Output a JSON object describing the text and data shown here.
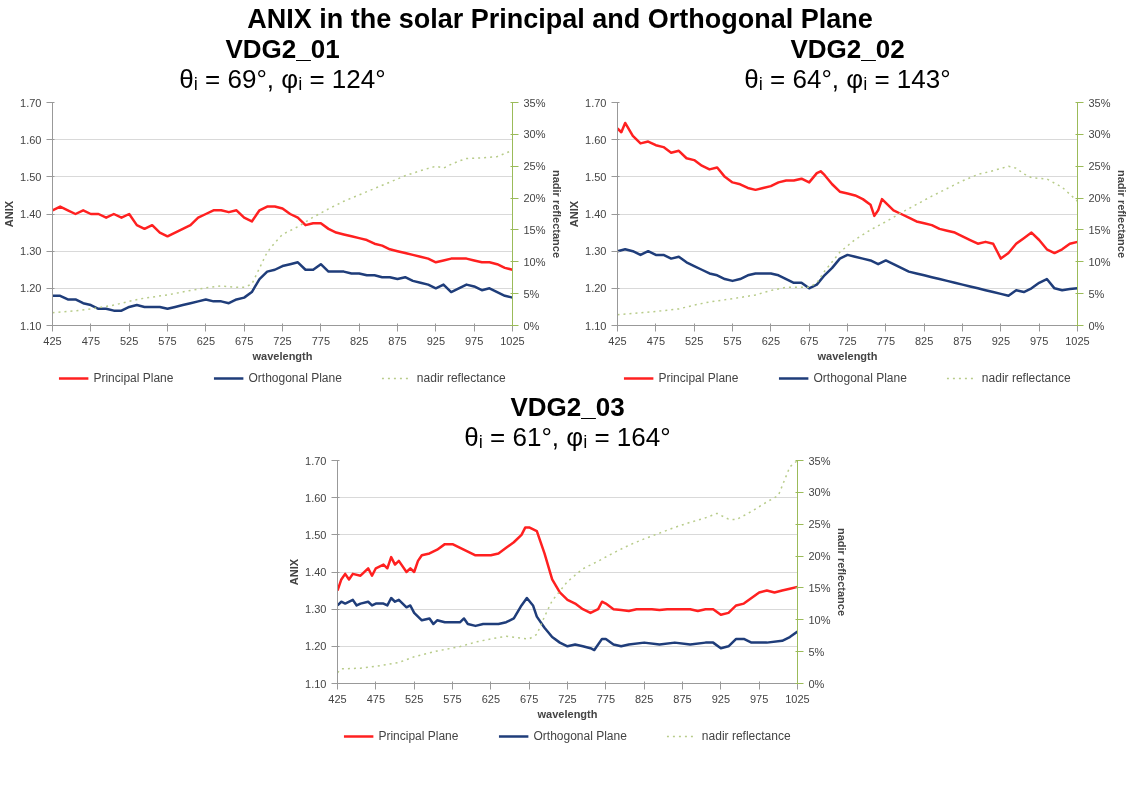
{
  "chart_data": [
    {
      "type": "line",
      "title": "VDG2_01",
      "subtitle": "θᵢ = 69°, φᵢ = 124°",
      "annotations": [
        "ANIX in the solar Principal and Orthogonal Plane"
      ],
      "xlabel": "wavelength",
      "ylabel": "ANIX",
      "y2label": "nadir reflectance",
      "xlim": [
        425,
        1025
      ],
      "xticks": [
        425,
        475,
        525,
        575,
        625,
        675,
        725,
        775,
        825,
        875,
        925,
        975,
        1025
      ],
      "ylim": [
        1.1,
        1.7
      ],
      "yticks": [
        {
          "value": 1.1,
          "label": "1.10"
        },
        {
          "value": 1.2,
          "label": "1.20"
        },
        {
          "value": 1.3,
          "label": "1.30"
        },
        {
          "value": 1.4,
          "label": "1.40"
        },
        {
          "value": 1.5,
          "label": "1.50"
        },
        {
          "value": 1.6,
          "label": "1.60"
        },
        {
          "value": 1.7,
          "label": "1.70"
        }
      ],
      "y2lim": [
        0,
        35
      ],
      "y2ticks": [
        {
          "value": 0,
          "label": "0%"
        },
        {
          "value": 5,
          "label": "5%"
        },
        {
          "value": 10,
          "label": "10%"
        },
        {
          "value": 15,
          "label": "15%"
        },
        {
          "value": 20,
          "label": "20%"
        },
        {
          "value": 25,
          "label": "25%"
        },
        {
          "value": 30,
          "label": "30%"
        },
        {
          "value": 35,
          "label": "35%"
        }
      ],
      "grid": "y",
      "legend": "bottom",
      "series": [
        {
          "name": "Principal Plane",
          "color": "#ff2020",
          "line_style": "solid",
          "x": [
            425,
            435,
            445,
            455,
            465,
            475,
            485,
            495,
            505,
            515,
            525,
            535,
            545,
            555,
            565,
            575,
            585,
            595,
            605,
            615,
            625,
            635,
            645,
            655,
            665,
            675,
            685,
            695,
            705,
            715,
            725,
            735,
            745,
            755,
            765,
            775,
            785,
            795,
            805,
            815,
            825,
            835,
            845,
            855,
            865,
            875,
            885,
            895,
            905,
            915,
            925,
            935,
            945,
            955,
            965,
            975,
            985,
            995,
            1005,
            1015,
            1025
          ],
          "values": [
            1.41,
            1.42,
            1.41,
            1.4,
            1.41,
            1.4,
            1.4,
            1.39,
            1.4,
            1.39,
            1.4,
            1.37,
            1.36,
            1.37,
            1.35,
            1.34,
            1.35,
            1.36,
            1.37,
            1.39,
            1.4,
            1.41,
            1.41,
            1.405,
            1.41,
            1.39,
            1.38,
            1.41,
            1.42,
            1.42,
            1.415,
            1.4,
            1.39,
            1.37,
            1.375,
            1.375,
            1.36,
            1.35,
            1.345,
            1.34,
            1.335,
            1.33,
            1.32,
            1.315,
            1.305,
            1.3,
            1.295,
            1.29,
            1.285,
            1.28,
            1.27,
            1.275,
            1.28,
            1.28,
            1.28,
            1.275,
            1.27,
            1.27,
            1.265,
            1.255,
            1.25
          ]
        },
        {
          "name": "Orthogonal Plane",
          "color": "#1f3d7a",
          "line_style": "solid",
          "x": [
            425,
            435,
            445,
            455,
            465,
            475,
            485,
            495,
            505,
            515,
            525,
            535,
            545,
            555,
            565,
            575,
            585,
            595,
            605,
            615,
            625,
            635,
            645,
            655,
            665,
            675,
            685,
            695,
            705,
            715,
            725,
            735,
            745,
            755,
            765,
            775,
            785,
            795,
            805,
            815,
            825,
            835,
            845,
            855,
            865,
            875,
            885,
            895,
            905,
            915,
            925,
            935,
            945,
            955,
            965,
            975,
            985,
            995,
            1005,
            1015,
            1025
          ],
          "values": [
            1.18,
            1.18,
            1.17,
            1.17,
            1.16,
            1.155,
            1.145,
            1.145,
            1.14,
            1.14,
            1.15,
            1.155,
            1.15,
            1.15,
            1.15,
            1.145,
            1.15,
            1.155,
            1.16,
            1.165,
            1.17,
            1.165,
            1.165,
            1.16,
            1.17,
            1.175,
            1.19,
            1.225,
            1.245,
            1.25,
            1.26,
            1.265,
            1.27,
            1.25,
            1.25,
            1.265,
            1.245,
            1.245,
            1.245,
            1.24,
            1.24,
            1.235,
            1.235,
            1.23,
            1.23,
            1.225,
            1.23,
            1.22,
            1.215,
            1.21,
            1.2,
            1.21,
            1.19,
            1.2,
            1.21,
            1.205,
            1.195,
            1.2,
            1.19,
            1.18,
            1.175
          ]
        },
        {
          "name": "nadir reflectance",
          "color": "#b8cc8a",
          "line_style": "dotted",
          "axis": "y2",
          "x": [
            425,
            455,
            475,
            505,
            525,
            545,
            575,
            605,
            625,
            645,
            665,
            675,
            685,
            695,
            705,
            715,
            725,
            745,
            765,
            785,
            805,
            825,
            845,
            865,
            885,
            905,
            925,
            935,
            945,
            955,
            965,
            985,
            1005,
            1025
          ],
          "values": [
            2.0,
            2.3,
            2.6,
            3.2,
            3.8,
            4.3,
            4.8,
            5.5,
            5.9,
            6.2,
            6.0,
            6.0,
            6.5,
            9,
            11.5,
            13,
            14.3,
            15.5,
            17,
            18.3,
            19.5,
            20.5,
            21.5,
            22.5,
            23.5,
            24.3,
            25,
            24.7,
            25.3,
            25.8,
            26.2,
            26.3,
            26.5,
            27.5
          ]
        }
      ]
    },
    {
      "type": "line",
      "title": "VDG2_02",
      "subtitle": "θᵢ = 64°, φᵢ = 143°",
      "xlabel": "wavelength",
      "ylabel": "ANIX",
      "y2label": "nadir reflectance",
      "xlim": [
        425,
        1025
      ],
      "xticks": [
        425,
        475,
        525,
        575,
        625,
        675,
        725,
        775,
        825,
        875,
        925,
        975,
        1025
      ],
      "ylim": [
        1.1,
        1.7
      ],
      "yticks": [
        {
          "value": 1.1,
          "label": "1.10"
        },
        {
          "value": 1.2,
          "label": "1.20"
        },
        {
          "value": 1.3,
          "label": "1.30"
        },
        {
          "value": 1.4,
          "label": "1.40"
        },
        {
          "value": 1.5,
          "label": "1.50"
        },
        {
          "value": 1.6,
          "label": "1.60"
        },
        {
          "value": 1.7,
          "label": "1.70"
        }
      ],
      "y2lim": [
        0,
        35
      ],
      "y2ticks": [
        {
          "value": 0,
          "label": "0%"
        },
        {
          "value": 5,
          "label": "5%"
        },
        {
          "value": 10,
          "label": "10%"
        },
        {
          "value": 15,
          "label": "15%"
        },
        {
          "value": 20,
          "label": "20%"
        },
        {
          "value": 25,
          "label": "25%"
        },
        {
          "value": 30,
          "label": "30%"
        },
        {
          "value": 35,
          "label": "35%"
        }
      ],
      "grid": "y",
      "legend": "bottom",
      "series": [
        {
          "name": "Principal Plane",
          "color": "#ff2020",
          "line_style": "solid",
          "x": [
            425,
            430,
            435,
            445,
            455,
            465,
            475,
            485,
            495,
            505,
            515,
            525,
            535,
            545,
            555,
            565,
            575,
            585,
            595,
            605,
            615,
            625,
            635,
            645,
            655,
            665,
            675,
            685,
            690,
            695,
            705,
            715,
            725,
            735,
            745,
            755,
            760,
            765,
            770,
            775,
            785,
            795,
            805,
            815,
            825,
            835,
            845,
            855,
            865,
            875,
            885,
            895,
            905,
            915,
            925,
            935,
            945,
            955,
            965,
            975,
            985,
            995,
            1005,
            1015,
            1025
          ],
          "values": [
            1.63,
            1.62,
            1.645,
            1.61,
            1.59,
            1.595,
            1.585,
            1.58,
            1.565,
            1.57,
            1.55,
            1.545,
            1.53,
            1.52,
            1.525,
            1.5,
            1.485,
            1.48,
            1.47,
            1.465,
            1.47,
            1.475,
            1.485,
            1.49,
            1.49,
            1.495,
            1.485,
            1.51,
            1.515,
            1.505,
            1.48,
            1.46,
            1.455,
            1.45,
            1.44,
            1.425,
            1.395,
            1.41,
            1.44,
            1.43,
            1.41,
            1.4,
            1.39,
            1.38,
            1.375,
            1.37,
            1.36,
            1.355,
            1.35,
            1.34,
            1.33,
            1.32,
            1.325,
            1.32,
            1.28,
            1.295,
            1.32,
            1.335,
            1.35,
            1.33,
            1.305,
            1.295,
            1.305,
            1.32,
            1.325
          ]
        },
        {
          "name": "Orthogonal Plane",
          "color": "#1f3d7a",
          "line_style": "solid",
          "x": [
            425,
            435,
            445,
            455,
            465,
            475,
            485,
            495,
            505,
            515,
            525,
            535,
            545,
            555,
            565,
            575,
            585,
            595,
            605,
            615,
            625,
            635,
            645,
            655,
            665,
            675,
            685,
            695,
            705,
            715,
            725,
            735,
            745,
            755,
            765,
            775,
            785,
            795,
            805,
            815,
            825,
            835,
            845,
            855,
            865,
            875,
            885,
            895,
            905,
            915,
            925,
            935,
            945,
            955,
            965,
            975,
            985,
            995,
            1005,
            1015,
            1025
          ],
          "values": [
            1.3,
            1.305,
            1.3,
            1.29,
            1.3,
            1.29,
            1.29,
            1.28,
            1.285,
            1.27,
            1.26,
            1.25,
            1.24,
            1.235,
            1.225,
            1.22,
            1.225,
            1.235,
            1.24,
            1.24,
            1.24,
            1.235,
            1.225,
            1.215,
            1.215,
            1.2,
            1.21,
            1.235,
            1.255,
            1.28,
            1.29,
            1.285,
            1.28,
            1.275,
            1.265,
            1.275,
            1.265,
            1.255,
            1.245,
            1.24,
            1.235,
            1.23,
            1.225,
            1.22,
            1.215,
            1.21,
            1.205,
            1.2,
            1.195,
            1.19,
            1.185,
            1.18,
            1.195,
            1.19,
            1.2,
            1.215,
            1.225,
            1.2,
            1.195,
            1.198,
            1.2
          ]
        },
        {
          "name": "nadir reflectance",
          "color": "#b8cc8a",
          "line_style": "dotted",
          "axis": "y2",
          "x": [
            425,
            455,
            475,
            505,
            525,
            545,
            575,
            605,
            625,
            645,
            665,
            675,
            685,
            695,
            715,
            735,
            755,
            775,
            795,
            815,
            835,
            855,
            875,
            895,
            915,
            935,
            945,
            955,
            965,
            985,
            1005,
            1025
          ],
          "values": [
            1.7,
            2.0,
            2.2,
            2.6,
            3.2,
            3.7,
            4.2,
            4.8,
            5.5,
            6.0,
            6.0,
            6.0,
            6.7,
            8.5,
            11.5,
            13.5,
            15,
            16.3,
            17.7,
            19,
            20.3,
            21.5,
            22.7,
            23.7,
            24.3,
            25,
            24.7,
            23.8,
            23.2,
            23,
            21.7,
            19.5
          ]
        }
      ]
    },
    {
      "type": "line",
      "title": "VDG2_03",
      "subtitle": "θᵢ = 61°, φᵢ = 164°",
      "xlabel": "wavelength",
      "ylabel": "ANIX",
      "y2label": "nadir reflectance",
      "xlim": [
        425,
        1025
      ],
      "xticks": [
        425,
        475,
        525,
        575,
        625,
        675,
        725,
        775,
        825,
        875,
        925,
        975,
        1025
      ],
      "ylim": [
        1.1,
        1.7
      ],
      "yticks": [
        {
          "value": 1.1,
          "label": "1.10"
        },
        {
          "value": 1.2,
          "label": "1.20"
        },
        {
          "value": 1.3,
          "label": "1.30"
        },
        {
          "value": 1.4,
          "label": "1.40"
        },
        {
          "value": 1.5,
          "label": "1.50"
        },
        {
          "value": 1.6,
          "label": "1.60"
        },
        {
          "value": 1.7,
          "label": "1.70"
        }
      ],
      "y2lim": [
        0,
        35
      ],
      "y2ticks": [
        {
          "value": 0,
          "label": "0%"
        },
        {
          "value": 5,
          "label": "5%"
        },
        {
          "value": 10,
          "label": "10%"
        },
        {
          "value": 15,
          "label": "15%"
        },
        {
          "value": 20,
          "label": "20%"
        },
        {
          "value": 25,
          "label": "25%"
        },
        {
          "value": 30,
          "label": "30%"
        },
        {
          "value": 35,
          "label": "35%"
        }
      ],
      "grid": "y",
      "legend": "bottom",
      "series": [
        {
          "name": "Principal Plane",
          "color": "#ff2020",
          "line_style": "solid",
          "x": [
            425,
            430,
            435,
            440,
            445,
            455,
            465,
            470,
            475,
            485,
            490,
            495,
            500,
            505,
            515,
            520,
            525,
            530,
            535,
            545,
            555,
            565,
            575,
            585,
            595,
            605,
            615,
            625,
            635,
            645,
            655,
            665,
            670,
            675,
            685,
            695,
            705,
            715,
            725,
            735,
            745,
            755,
            765,
            770,
            775,
            785,
            795,
            805,
            815,
            825,
            835,
            845,
            855,
            865,
            875,
            885,
            895,
            905,
            915,
            925,
            935,
            945,
            955,
            965,
            975,
            985,
            995,
            1005,
            1015,
            1025
          ],
          "values": [
            1.35,
            1.38,
            1.395,
            1.38,
            1.395,
            1.39,
            1.41,
            1.39,
            1.41,
            1.42,
            1.41,
            1.44,
            1.42,
            1.43,
            1.4,
            1.41,
            1.4,
            1.43,
            1.445,
            1.45,
            1.46,
            1.475,
            1.475,
            1.465,
            1.455,
            1.445,
            1.445,
            1.445,
            1.45,
            1.465,
            1.48,
            1.5,
            1.52,
            1.52,
            1.51,
            1.45,
            1.38,
            1.345,
            1.325,
            1.315,
            1.3,
            1.29,
            1.3,
            1.32,
            1.315,
            1.3,
            1.298,
            1.295,
            1.3,
            1.3,
            1.3,
            1.298,
            1.3,
            1.3,
            1.3,
            1.3,
            1.295,
            1.3,
            1.3,
            1.285,
            1.29,
            1.31,
            1.315,
            1.33,
            1.345,
            1.35,
            1.345,
            1.35,
            1.355,
            1.36
          ]
        },
        {
          "name": "Orthogonal Plane",
          "color": "#1f3d7a",
          "line_style": "solid",
          "x": [
            425,
            430,
            435,
            445,
            450,
            455,
            465,
            470,
            475,
            485,
            490,
            495,
            500,
            505,
            515,
            520,
            525,
            535,
            545,
            550,
            555,
            565,
            575,
            585,
            590,
            595,
            605,
            615,
            625,
            635,
            645,
            655,
            665,
            672,
            680,
            685,
            695,
            705,
            715,
            725,
            735,
            745,
            755,
            760,
            770,
            775,
            785,
            795,
            805,
            825,
            845,
            865,
            885,
            905,
            915,
            925,
            935,
            945,
            955,
            965,
            985,
            1005,
            1015,
            1025
          ],
          "values": [
            1.31,
            1.32,
            1.315,
            1.325,
            1.31,
            1.315,
            1.32,
            1.31,
            1.315,
            1.315,
            1.31,
            1.33,
            1.32,
            1.325,
            1.305,
            1.31,
            1.29,
            1.27,
            1.275,
            1.26,
            1.27,
            1.265,
            1.265,
            1.265,
            1.275,
            1.26,
            1.255,
            1.26,
            1.26,
            1.26,
            1.265,
            1.275,
            1.31,
            1.33,
            1.31,
            1.28,
            1.25,
            1.225,
            1.21,
            1.2,
            1.205,
            1.2,
            1.195,
            1.19,
            1.22,
            1.22,
            1.205,
            1.2,
            1.205,
            1.21,
            1.205,
            1.21,
            1.205,
            1.21,
            1.21,
            1.195,
            1.2,
            1.22,
            1.22,
            1.21,
            1.21,
            1.215,
            1.225,
            1.24
          ]
        },
        {
          "name": "nadir reflectance",
          "color": "#b8cc8a",
          "line_style": "dotted",
          "axis": "y2",
          "x": [
            425,
            430,
            455,
            475,
            505,
            525,
            555,
            585,
            605,
            625,
            645,
            665,
            675,
            685,
            695,
            705,
            725,
            745,
            765,
            785,
            805,
            825,
            845,
            865,
            885,
            905,
            920,
            935,
            945,
            965,
            985,
            1000,
            1015,
            1025
          ],
          "values": [
            1.7,
            2.3,
            2.4,
            2.7,
            3.3,
            4.2,
            5.1,
            5.8,
            6.5,
            7.0,
            7.4,
            7.1,
            7.0,
            7.7,
            10.5,
            13,
            16,
            18,
            19.2,
            20.5,
            21.7,
            22.7,
            23.6,
            24.5,
            25.3,
            26,
            26.7,
            25.8,
            25.7,
            27,
            28.5,
            29.5,
            34,
            35
          ]
        }
      ]
    }
  ]
}
